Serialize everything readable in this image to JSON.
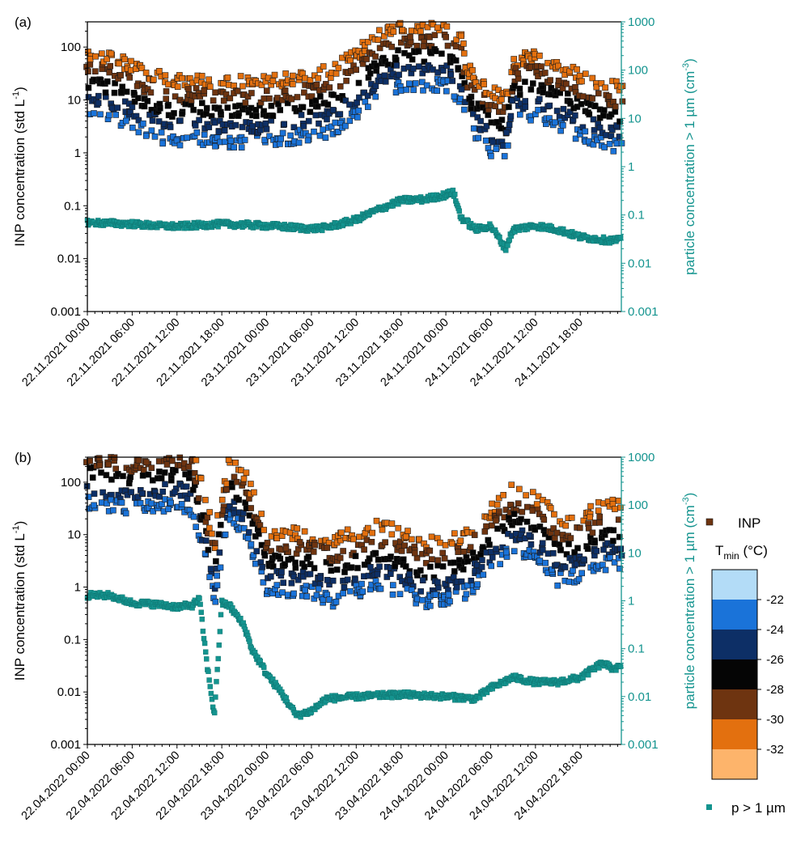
{
  "chart_data": [
    {
      "type": "scatter",
      "panel_label": "(a)",
      "ylabel_left": "INP concentration (std L",
      "ylabel_left_sup": "-1",
      "ylabel_left_end": ")",
      "ylabel_right": "particle concentration > 1 µm (cm",
      "ylabel_right_sup": "-3",
      "ylabel_right_end": ")",
      "yscale": "log",
      "ylim_left": [
        0.001,
        300
      ],
      "ylim_right": [
        0.001,
        1000
      ],
      "yticks_left": [
        "0.001",
        "0.01",
        "0.1",
        "1",
        "10",
        "100"
      ],
      "yticks_right": [
        "0.001",
        "0.01",
        "0.1",
        "1",
        "10",
        "100",
        "1000"
      ],
      "x_start": "22.11.2021 00:00",
      "x_range_hours": [
        0,
        71.5
      ],
      "xticks": [
        "22.11.2021 00:00",
        "22.11.2021 06:00",
        "22.11.2021 12:00",
        "22.11.2021 18:00",
        "23.11.2021 00:00",
        "23.11.2021 06:00",
        "23.11.2021 12:00",
        "23.11.2021 18:00",
        "24.11.2021 00:00",
        "24.11.2021 06:00",
        "24.11.2021 12:00",
        "24.11.2021 18:00"
      ],
      "inp_baseline": [
        [
          "22.11.2021 00:00",
          20
        ],
        [
          "22.11.2021 03:00",
          18
        ],
        [
          "22.11.2021 06:00",
          12
        ],
        [
          "22.11.2021 09:00",
          8
        ],
        [
          "22.11.2021 12:00",
          6
        ],
        [
          "22.11.2021 15:00",
          7
        ],
        [
          "22.11.2021 18:00",
          6
        ],
        [
          "22.11.2021 21:00",
          6
        ],
        [
          "23.11.2021 00:00",
          6
        ],
        [
          "23.11.2021 03:00",
          7
        ],
        [
          "23.11.2021 06:00",
          8
        ],
        [
          "23.11.2021 09:00",
          10
        ],
        [
          "23.11.2021 12:00",
          20
        ],
        [
          "23.11.2021 15:00",
          45
        ],
        [
          "23.11.2021 18:00",
          70
        ],
        [
          "23.11.2021 21:00",
          70
        ],
        [
          "24.11.2021 00:00",
          70
        ],
        [
          "24.11.2021 02:00",
          40
        ],
        [
          "24.11.2021 03:00",
          10
        ],
        [
          "24.11.2021 06:00",
          4
        ],
        [
          "24.11.2021 08:00",
          3
        ],
        [
          "24.11.2021 09:00",
          15
        ],
        [
          "24.11.2021 12:00",
          20
        ],
        [
          "24.11.2021 15:00",
          12
        ],
        [
          "24.11.2021 18:00",
          8
        ],
        [
          "24.11.2021 21:30",
          5
        ]
      ],
      "particle_series": [
        [
          "22.11.2021 00:00",
          0.07
        ],
        [
          "22.11.2021 06:00",
          0.065
        ],
        [
          "22.11.2021 09:00",
          0.06
        ],
        [
          "22.11.2021 12:00",
          0.058
        ],
        [
          "22.11.2021 18:00",
          0.065
        ],
        [
          "23.11.2021 00:00",
          0.06
        ],
        [
          "23.11.2021 06:00",
          0.052
        ],
        [
          "23.11.2021 08:00",
          0.055
        ],
        [
          "23.11.2021 12:00",
          0.08
        ],
        [
          "23.11.2021 15:00",
          0.13
        ],
        [
          "23.11.2021 18:00",
          0.2
        ],
        [
          "23.11.2021 21:00",
          0.21
        ],
        [
          "24.11.2021 00:00",
          0.26
        ],
        [
          "24.11.2021 01:00",
          0.3
        ],
        [
          "24.11.2021 02:00",
          0.09
        ],
        [
          "24.11.2021 04:00",
          0.05
        ],
        [
          "24.11.2021 06:00",
          0.06
        ],
        [
          "24.11.2021 07:00",
          0.035
        ],
        [
          "24.11.2021 08:00",
          0.02
        ],
        [
          "24.11.2021 09:00",
          0.05
        ],
        [
          "24.11.2021 12:00",
          0.06
        ],
        [
          "24.11.2021 15:00",
          0.05
        ],
        [
          "24.11.2021 18:00",
          0.035
        ],
        [
          "24.11.2021 21:30",
          0.03
        ]
      ]
    },
    {
      "type": "scatter",
      "panel_label": "(b)",
      "ylabel_left": "INP concentration (std L",
      "ylabel_left_sup": "-1",
      "ylabel_left_end": ")",
      "ylabel_right": "particle concentration > 1 µm (cm",
      "ylabel_right_sup": "-3",
      "ylabel_right_end": ")",
      "yscale": "log",
      "ylim_left": [
        0.001,
        300
      ],
      "ylim_right": [
        0.001,
        1000
      ],
      "yticks_left": [
        "0.001",
        "0.01",
        "0.1",
        "1",
        "10",
        "100"
      ],
      "yticks_right": [
        "0.001",
        "0.01",
        "0.1",
        "1",
        "10",
        "100",
        "1000"
      ],
      "x_start": "22.04.2022 00:00",
      "x_range_hours": [
        0,
        71.5
      ],
      "xticks": [
        "22.04.2022 00:00",
        "22.04.2022 06:00",
        "22.04.2022 12:00",
        "22.04.2022 18:00",
        "23.04.2022 00:00",
        "23.04.2022 06:00",
        "23.04.2022 12:00",
        "23.04.2022 18:00",
        "24.04.2022 00:00",
        "24.04.2022 06:00",
        "24.04.2022 12:00",
        "24.04.2022 18:00"
      ],
      "inp_baseline": [
        [
          "22.04.2022 00:00",
          150
        ],
        [
          "22.04.2022 03:00",
          130
        ],
        [
          "22.04.2022 06:00",
          110
        ],
        [
          "22.04.2022 09:00",
          130
        ],
        [
          "22.04.2022 12:00",
          140
        ],
        [
          "22.04.2022 14:00",
          110
        ],
        [
          "22.04.2022 16:00",
          10
        ],
        [
          "22.04.2022 17:00",
          2
        ],
        [
          "22.04.2022 19:00",
          80
        ],
        [
          "22.04.2022 21:00",
          40
        ],
        [
          "22.04.2022 23:00",
          8
        ],
        [
          "23.04.2022 00:00",
          3
        ],
        [
          "23.04.2022 03:00",
          3
        ],
        [
          "23.04.2022 06:00",
          3
        ],
        [
          "23.04.2022 09:00",
          2
        ],
        [
          "23.04.2022 12:00",
          3
        ],
        [
          "23.04.2022 15:00",
          4
        ],
        [
          "23.04.2022 18:00",
          3
        ],
        [
          "23.04.2022 21:00",
          2
        ],
        [
          "24.04.2022 00:00",
          2
        ],
        [
          "24.04.2022 03:00",
          3
        ],
        [
          "24.04.2022 06:00",
          8
        ],
        [
          "24.04.2022 09:00",
          20
        ],
        [
          "24.04.2022 12:00",
          15
        ],
        [
          "24.04.2022 15:00",
          5
        ],
        [
          "24.04.2022 18:00",
          6
        ],
        [
          "24.04.2022 21:30",
          10
        ]
      ],
      "particle_series": [
        [
          "22.04.2022 00:00",
          1.3
        ],
        [
          "22.04.2022 03:00",
          1.3
        ],
        [
          "22.04.2022 06:00",
          0.9
        ],
        [
          "22.04.2022 09:00",
          0.85
        ],
        [
          "22.04.2022 12:00",
          0.75
        ],
        [
          "22.04.2022 14:00",
          0.8
        ],
        [
          "22.04.2022 15:00",
          1.1
        ],
        [
          "22.04.2022 16:00",
          0.05
        ],
        [
          "22.04.2022 17:00",
          0.004
        ],
        [
          "22.04.2022 18:00",
          0.9
        ],
        [
          "22.04.2022 19:00",
          0.8
        ],
        [
          "22.04.2022 21:00",
          0.3
        ],
        [
          "22.04.2022 22:00",
          0.1
        ],
        [
          "23.04.2022 00:00",
          0.03
        ],
        [
          "23.04.2022 02:00",
          0.012
        ],
        [
          "23.04.2022 04:00",
          0.004
        ],
        [
          "23.04.2022 06:00",
          0.005
        ],
        [
          "23.04.2022 08:00",
          0.009
        ],
        [
          "23.04.2022 12:00",
          0.01
        ],
        [
          "23.04.2022 18:00",
          0.011
        ],
        [
          "24.04.2022 00:00",
          0.01
        ],
        [
          "24.04.2022 04:00",
          0.009
        ],
        [
          "24.04.2022 06:00",
          0.015
        ],
        [
          "24.04.2022 09:00",
          0.025
        ],
        [
          "24.04.2022 12:00",
          0.02
        ],
        [
          "24.04.2022 15:00",
          0.02
        ],
        [
          "24.04.2022 18:00",
          0.025
        ],
        [
          "24.04.2022 21:00",
          0.05
        ],
        [
          "24.04.2022 22:00",
          0.04
        ]
      ]
    }
  ],
  "legend": {
    "inp_label": "INP",
    "tmin_label_main": "T",
    "tmin_label_sub": "min",
    "tmin_label_unit": " (°C)",
    "particle_label": "p > 1 µm"
  },
  "colorbar": {
    "colors": [
      "#b3dcf7",
      "#1a73d9",
      "#0d2f66",
      "#050505",
      "#6e3410",
      "#e3700f",
      "#fdb46b"
    ],
    "tick_labels": [
      "-22",
      "-24",
      "-26",
      "-28",
      "-30",
      "-32"
    ]
  },
  "colors": {
    "particle_marker": "#14948f",
    "right_axis": "#14948f"
  }
}
